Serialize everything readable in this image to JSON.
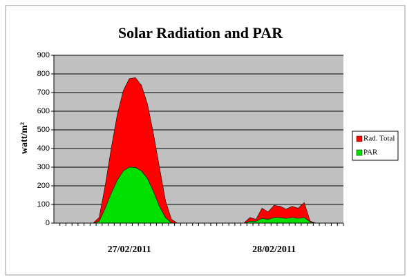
{
  "chart_data": {
    "type": "area",
    "title": "Solar Radiation and PAR",
    "ylabel": "watt/m²",
    "categories": [
      null,
      null,
      null,
      null,
      null,
      null,
      null,
      null,
      null,
      null,
      null,
      null,
      "27/02/2011",
      null,
      null,
      null,
      null,
      null,
      null,
      null,
      null,
      null,
      null,
      null,
      null,
      null,
      null,
      null,
      null,
      null,
      null,
      null,
      null,
      null,
      null,
      null,
      "28/02/2011",
      null,
      null,
      null,
      null,
      null,
      null,
      null,
      null,
      null,
      null,
      null
    ],
    "series": [
      {
        "name": "Rad. Total",
        "color": "#ff0000",
        "values": [
          0,
          0,
          0,
          0,
          0,
          0,
          0,
          30,
          200,
          400,
          580,
          710,
          775,
          780,
          740,
          640,
          480,
          300,
          120,
          20,
          0,
          0,
          0,
          0,
          0,
          0,
          0,
          0,
          0,
          0,
          0,
          0,
          30,
          20,
          80,
          60,
          95,
          90,
          75,
          90,
          80,
          110,
          10,
          0,
          0,
          0,
          0,
          0
        ]
      },
      {
        "name": "PAR",
        "color": "#00e000",
        "values": [
          0,
          0,
          0,
          0,
          0,
          0,
          0,
          10,
          80,
          160,
          230,
          280,
          300,
          298,
          280,
          240,
          170,
          90,
          30,
          0,
          0,
          0,
          0,
          0,
          0,
          0,
          0,
          0,
          0,
          0,
          0,
          0,
          10,
          10,
          25,
          20,
          30,
          30,
          25,
          30,
          25,
          30,
          5,
          0,
          0,
          0,
          0,
          0
        ]
      }
    ],
    "ylim": [
      0,
      900
    ],
    "yticks": [
      0,
      100,
      200,
      300,
      400,
      500,
      600,
      700,
      800,
      900
    ],
    "grid": true,
    "legend": "right"
  }
}
